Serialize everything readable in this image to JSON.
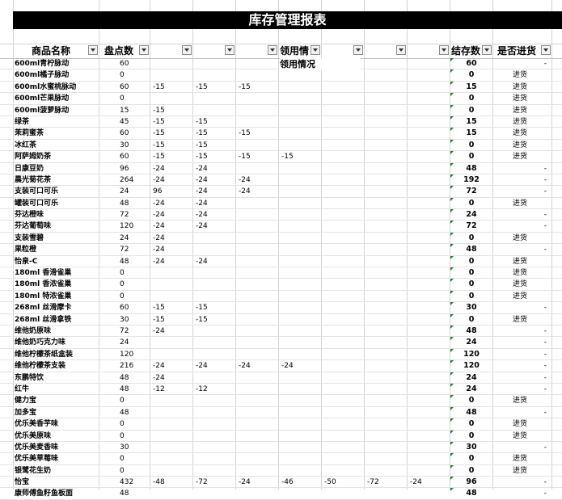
{
  "title": "库存管理报表",
  "headers": {
    "name": "商品名称",
    "count": "盘点数",
    "usage": "领用情",
    "stock": "结存数",
    "need": "是否进货"
  },
  "usage_merged_label": "领用情况",
  "rows": [
    {
      "name": "600ml青柠脉动",
      "count": "60",
      "u": [
        "",
        "",
        "",
        "",
        "",
        "",
        "",
        ""
      ],
      "stock": "60",
      "need": "-"
    },
    {
      "name": "600ml橘子脉动",
      "count": "0",
      "u": [
        "",
        "",
        "",
        "",
        "",
        "",
        "",
        ""
      ],
      "stock": "0",
      "need": "进货"
    },
    {
      "name": "600ml水蜜桃脉动",
      "count": "60",
      "u": [
        "-15",
        "-15",
        "-15",
        "",
        "",
        "",
        "",
        ""
      ],
      "stock": "15",
      "need": "进货"
    },
    {
      "name": "600ml芒果脉动",
      "count": "0",
      "u": [
        "",
        "",
        "",
        "",
        "",
        "",
        "",
        ""
      ],
      "stock": "0",
      "need": "进货"
    },
    {
      "name": "600ml菠萝脉动",
      "count": "15",
      "u": [
        "-15",
        "",
        "",
        "",
        "",
        "",
        "",
        ""
      ],
      "stock": "0",
      "need": "进货"
    },
    {
      "name": "绿茶",
      "count": "45",
      "u": [
        "-15",
        "-15",
        "",
        "",
        "",
        "",
        "",
        ""
      ],
      "stock": "15",
      "need": "进货"
    },
    {
      "name": "茉莉蜜茶",
      "count": "60",
      "u": [
        "-15",
        "-15",
        "-15",
        "",
        "",
        "",
        "",
        ""
      ],
      "stock": "15",
      "need": "进货"
    },
    {
      "name": "冰红茶",
      "count": "30",
      "u": [
        "-15",
        "-15",
        "",
        "",
        "",
        "",
        "",
        ""
      ],
      "stock": "0",
      "need": "进货"
    },
    {
      "name": "阿萨姆奶茶",
      "count": "60",
      "u": [
        "-15",
        "-15",
        "-15",
        "-15",
        "",
        "",
        "",
        ""
      ],
      "stock": "0",
      "need": "进货"
    },
    {
      "name": "日康豆奶",
      "count": "96",
      "u": [
        "-24",
        "-24",
        "",
        "",
        "",
        "",
        "",
        ""
      ],
      "stock": "48",
      "need": "-"
    },
    {
      "name": "晨光菊花茶",
      "count": "264",
      "u": [
        "-24",
        "-24",
        "-24",
        "",
        "",
        "",
        "",
        ""
      ],
      "stock": "192",
      "need": "-"
    },
    {
      "name": "支装可口可乐",
      "count": "24",
      "u": [
        "96",
        "-24",
        "-24",
        "",
        "",
        "",
        "",
        ""
      ],
      "stock": "72",
      "need": "-"
    },
    {
      "name": "罐装可口可乐",
      "count": "48",
      "u": [
        "-24",
        "-24",
        "",
        "",
        "",
        "",
        "",
        ""
      ],
      "stock": "0",
      "need": "进货"
    },
    {
      "name": "芬达橙味",
      "count": "72",
      "u": [
        "-24",
        "-24",
        "",
        "",
        "",
        "",
        "",
        ""
      ],
      "stock": "24",
      "need": "-"
    },
    {
      "name": "芬达葡萄味",
      "count": "120",
      "u": [
        "-24",
        "-24",
        "",
        "",
        "",
        "",
        "",
        ""
      ],
      "stock": "72",
      "need": "-"
    },
    {
      "name": "支装雪碧",
      "count": "24",
      "u": [
        "-24",
        "",
        "",
        "",
        "",
        "",
        "",
        ""
      ],
      "stock": "0",
      "need": "进货"
    },
    {
      "name": "果粒橙",
      "count": "72",
      "u": [
        "-24",
        "",
        "",
        "",
        "",
        "",
        "",
        ""
      ],
      "stock": "48",
      "need": "-"
    },
    {
      "name": "怡泉-C",
      "count": "48",
      "u": [
        "-24",
        "-24",
        "",
        "",
        "",
        "",
        "",
        ""
      ],
      "stock": "0",
      "need": "进货"
    },
    {
      "name": "180ml 香滑雀巢",
      "count": "0",
      "u": [
        "",
        "",
        "",
        "",
        "",
        "",
        "",
        ""
      ],
      "stock": "0",
      "need": "进货"
    },
    {
      "name": "180ml 香浓雀巢",
      "count": "0",
      "u": [
        "",
        "",
        "",
        "",
        "",
        "",
        "",
        ""
      ],
      "stock": "0",
      "need": "进货"
    },
    {
      "name": "180ml 特浓雀巢",
      "count": "0",
      "u": [
        "",
        "",
        "",
        "",
        "",
        "",
        "",
        ""
      ],
      "stock": "0",
      "need": "进货"
    },
    {
      "name": "268ml 丝滑摩卡",
      "count": "60",
      "u": [
        "-15",
        "-15",
        "",
        "",
        "",
        "",
        "",
        ""
      ],
      "stock": "30",
      "need": "-"
    },
    {
      "name": "268ml 丝滑拿铁",
      "count": "30",
      "u": [
        "-15",
        "-15",
        "",
        "",
        "",
        "",
        "",
        ""
      ],
      "stock": "0",
      "need": "进货"
    },
    {
      "name": "维他奶原味",
      "count": "72",
      "u": [
        "-24",
        "",
        "",
        "",
        "",
        "",
        "",
        ""
      ],
      "stock": "48",
      "need": "-"
    },
    {
      "name": "维他奶巧克力味",
      "count": "24",
      "u": [
        "",
        "",
        "",
        "",
        "",
        "",
        "",
        ""
      ],
      "stock": "24",
      "need": "-"
    },
    {
      "name": "维他柠檬茶纸盒装",
      "count": "120",
      "u": [
        "",
        "",
        "",
        "",
        "",
        "",
        "",
        ""
      ],
      "stock": "120",
      "need": "-"
    },
    {
      "name": "维他柠檬茶支装",
      "count": "216",
      "u": [
        "-24",
        "-24",
        "-24",
        "-24",
        "",
        "",
        "",
        ""
      ],
      "stock": "120",
      "need": "-"
    },
    {
      "name": "东鹏特饮",
      "count": "48",
      "u": [
        "-24",
        "",
        "",
        "",
        "",
        "",
        "",
        ""
      ],
      "stock": "24",
      "need": "-"
    },
    {
      "name": "红牛",
      "count": "48",
      "u": [
        "-12",
        "-12",
        "",
        "",
        "",
        "",
        "",
        ""
      ],
      "stock": "24",
      "need": "-"
    },
    {
      "name": "健力宝",
      "count": "0",
      "u": [
        "",
        "",
        "",
        "",
        "",
        "",
        "",
        ""
      ],
      "stock": "0",
      "need": "进货"
    },
    {
      "name": "加多宝",
      "count": "48",
      "u": [
        "",
        "",
        "",
        "",
        "",
        "",
        "",
        ""
      ],
      "stock": "48",
      "need": "-"
    },
    {
      "name": "优乐美香芋味",
      "count": "0",
      "u": [
        "",
        "",
        "",
        "",
        "",
        "",
        "",
        ""
      ],
      "stock": "0",
      "need": "进货"
    },
    {
      "name": "优乐美原味",
      "count": "0",
      "u": [
        "",
        "",
        "",
        "",
        "",
        "",
        "",
        ""
      ],
      "stock": "0",
      "need": "进货"
    },
    {
      "name": "优乐美麦香味",
      "count": "30",
      "u": [
        "",
        "",
        "",
        "",
        "",
        "",
        "",
        ""
      ],
      "stock": "30",
      "need": "-"
    },
    {
      "name": "优乐美草莓味",
      "count": "0",
      "u": [
        "",
        "",
        "",
        "",
        "",
        "",
        "",
        ""
      ],
      "stock": "0",
      "need": "进货"
    },
    {
      "name": "银鹭花生奶",
      "count": "0",
      "u": [
        "",
        "",
        "",
        "",
        "",
        "",
        "",
        ""
      ],
      "stock": "0",
      "need": "进货"
    },
    {
      "name": "怡宝",
      "count": "432",
      "u": [
        "-48",
        "-72",
        "-24",
        "-46",
        "-50",
        "-72",
        "-24",
        ""
      ],
      "stock": "96",
      "need": "-"
    },
    {
      "name": "康师傅鱼籽鱼板面",
      "count": "48",
      "u": [
        "",
        "",
        "",
        "",
        "",
        "",
        "",
        ""
      ],
      "stock": "48",
      "need": "-"
    }
  ]
}
